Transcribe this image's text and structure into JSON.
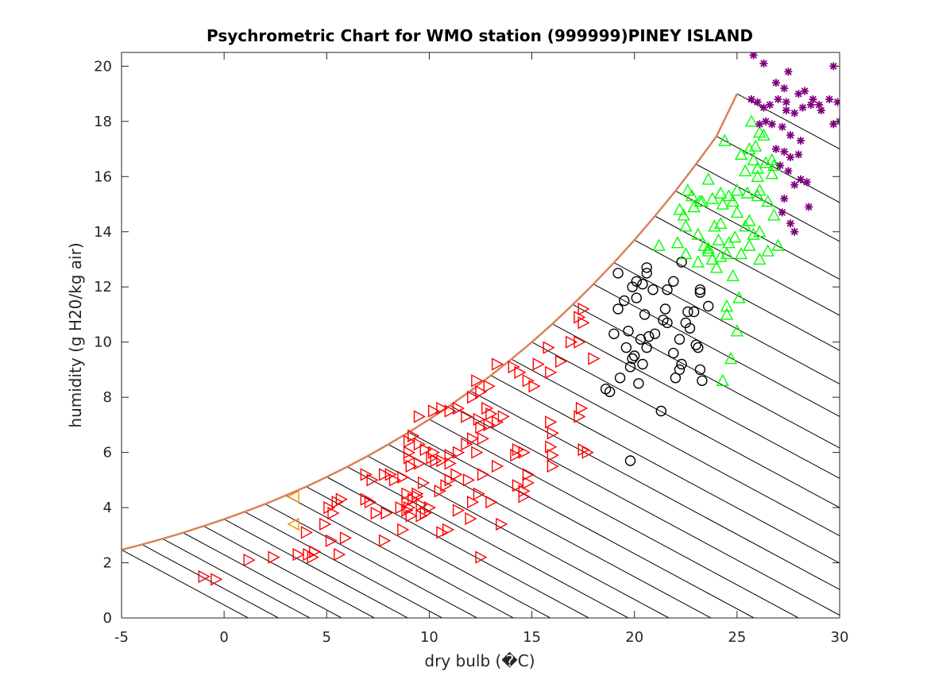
{
  "chart_data": {
    "type": "scatter",
    "title": "Psychrometric Chart for WMO station (999999)PINEY ISLAND",
    "xlabel": "dry bulb (�C)",
    "ylabel": "humidity (g H20/kg air)",
    "xlim": [
      -5,
      30
    ],
    "ylim": [
      0,
      20.5
    ],
    "xticks": [
      -5,
      0,
      5,
      10,
      15,
      20,
      25,
      30
    ],
    "yticks": [
      0,
      2,
      4,
      6,
      8,
      10,
      12,
      14,
      16,
      18,
      20
    ],
    "grid": false,
    "legend": "none",
    "saturation_curve": {
      "color": "#d9825b",
      "x": [
        -5,
        -4,
        -3,
        -2,
        -1,
        0,
        1,
        2,
        3,
        4,
        5,
        6,
        7,
        8,
        9,
        10,
        11,
        12,
        13,
        14,
        15,
        16,
        17,
        18,
        19,
        20,
        21,
        22,
        23,
        24,
        25
      ],
      "y": [
        2.47,
        2.66,
        2.87,
        3.09,
        3.33,
        3.58,
        3.85,
        4.13,
        4.44,
        4.76,
        5.11,
        5.48,
        5.87,
        6.29,
        6.73,
        7.2,
        7.7,
        8.23,
        8.79,
        9.38,
        10.0,
        10.66,
        11.36,
        12.1,
        12.88,
        13.7,
        14.57,
        15.48,
        16.45,
        17.46,
        19.0
      ]
    },
    "wet_bulb_lines": {
      "color": "#000000",
      "twb_start": -5,
      "twb_end": 33,
      "step": 1
    },
    "series": [
      {
        "marker": "triangle-right",
        "color": "#ff0000",
        "points": [
          [
            -1,
            1.5
          ],
          [
            -0.4,
            1.4
          ],
          [
            1.2,
            2.1
          ],
          [
            2.4,
            2.2
          ],
          [
            3.6,
            2.3
          ],
          [
            4.1,
            2.3
          ],
          [
            4.3,
            2.2
          ],
          [
            4.4,
            2.4
          ],
          [
            5.6,
            2.3
          ],
          [
            4.0,
            3.1
          ],
          [
            5.2,
            2.8
          ],
          [
            5.9,
            2.9
          ],
          [
            4.9,
            3.4
          ],
          [
            5.1,
            4.0
          ],
          [
            5.3,
            3.8
          ],
          [
            5.5,
            4.2
          ],
          [
            5.7,
            4.3
          ],
          [
            6.9,
            4.3
          ],
          [
            7.1,
            4.2
          ],
          [
            7.4,
            3.8
          ],
          [
            7.2,
            5.0
          ],
          [
            6.9,
            5.2
          ],
          [
            7.8,
            5.2
          ],
          [
            8.1,
            5.2
          ],
          [
            7.9,
            3.8
          ],
          [
            7.8,
            2.8
          ],
          [
            8.7,
            3.2
          ],
          [
            8.9,
            3.9
          ],
          [
            9.0,
            4.0
          ],
          [
            9.2,
            4.3
          ],
          [
            9.4,
            4.5
          ],
          [
            9.6,
            3.7
          ],
          [
            9.8,
            3.8
          ],
          [
            10.0,
            4.0
          ],
          [
            9.1,
            3.7
          ],
          [
            8.9,
            4.2
          ],
          [
            9.6,
            4.1
          ],
          [
            8.7,
            5.1
          ],
          [
            9.1,
            5.5
          ],
          [
            9.5,
            5.6
          ],
          [
            10.1,
            5.8
          ],
          [
            10.5,
            4.6
          ],
          [
            10.8,
            4.8
          ],
          [
            11.0,
            5.0
          ],
          [
            11.3,
            5.2
          ],
          [
            10.6,
            3.1
          ],
          [
            10.9,
            3.2
          ],
          [
            11.4,
            3.9
          ],
          [
            12.1,
            4.2
          ],
          [
            12.4,
            4.5
          ],
          [
            11.9,
            5.0
          ],
          [
            12.6,
            5.2
          ],
          [
            9.0,
            5.8
          ],
          [
            9.0,
            6.0
          ],
          [
            9.0,
            6.4
          ],
          [
            9.2,
            6.6
          ],
          [
            9.5,
            6.3
          ],
          [
            9.8,
            6.1
          ],
          [
            10.2,
            6.0
          ],
          [
            10.6,
            5.7
          ],
          [
            11.0,
            5.9
          ],
          [
            11.4,
            6.0
          ],
          [
            11.8,
            6.3
          ],
          [
            12.1,
            6.5
          ],
          [
            12.5,
            6.9
          ],
          [
            12.9,
            7.0
          ],
          [
            13.3,
            7.1
          ],
          [
            13.6,
            7.3
          ],
          [
            9.5,
            7.3
          ],
          [
            10.2,
            7.5
          ],
          [
            10.6,
            7.6
          ],
          [
            11.0,
            7.5
          ],
          [
            11.4,
            7.6
          ],
          [
            11.8,
            7.3
          ],
          [
            12.4,
            7.2
          ],
          [
            12.8,
            7.6
          ],
          [
            13.0,
            7.4
          ],
          [
            12.1,
            8.0
          ],
          [
            12.5,
            8.2
          ],
          [
            12.9,
            8.4
          ],
          [
            12.3,
            8.6
          ],
          [
            13.3,
            9.2
          ],
          [
            14.1,
            9.1
          ],
          [
            14.4,
            8.9
          ],
          [
            14.8,
            8.6
          ],
          [
            15.1,
            8.4
          ],
          [
            15.3,
            9.2
          ],
          [
            15.9,
            8.9
          ],
          [
            15.8,
            9.8
          ],
          [
            16.4,
            9.3
          ],
          [
            16.9,
            10.0
          ],
          [
            17.3,
            10.0
          ],
          [
            17.3,
            10.9
          ],
          [
            17.5,
            11.2
          ],
          [
            17.5,
            10.7
          ],
          [
            18.0,
            9.4
          ],
          [
            17.4,
            7.6
          ],
          [
            17.3,
            7.3
          ],
          [
            15.9,
            7.1
          ],
          [
            16.0,
            6.7
          ],
          [
            15.9,
            6.2
          ],
          [
            16.0,
            5.9
          ],
          [
            16.0,
            5.5
          ],
          [
            17.5,
            6.1
          ],
          [
            17.7,
            6.0
          ],
          [
            14.3,
            6.1
          ],
          [
            14.2,
            5.9
          ],
          [
            14.6,
            6.0
          ],
          [
            14.6,
            4.6
          ],
          [
            14.8,
            4.9
          ],
          [
            14.8,
            5.2
          ],
          [
            14.3,
            4.8
          ],
          [
            14.6,
            4.4
          ],
          [
            13.5,
            3.4
          ],
          [
            12.5,
            2.2
          ],
          [
            12.0,
            3.6
          ],
          [
            13.0,
            4.2
          ],
          [
            13.3,
            5.5
          ],
          [
            12.6,
            6.5
          ],
          [
            12.3,
            6.0
          ],
          [
            11.0,
            5.6
          ],
          [
            10.3,
            5.7
          ],
          [
            9.7,
            4.9
          ],
          [
            9.4,
            4.4
          ],
          [
            8.9,
            4.5
          ],
          [
            8.6,
            4.0
          ],
          [
            8.3,
            5.0
          ]
        ]
      },
      {
        "marker": "triangle-left",
        "color": "#ff8c00",
        "points": [
          [
            3.4,
            4.4
          ],
          [
            3.4,
            3.4
          ]
        ]
      },
      {
        "marker": "circle",
        "color": "#000000",
        "points": [
          [
            19.8,
            5.7
          ],
          [
            18.6,
            8.3
          ],
          [
            18.8,
            8.2
          ],
          [
            19.3,
            8.7
          ],
          [
            20.2,
            8.5
          ],
          [
            21.3,
            7.5
          ],
          [
            19.8,
            9.1
          ],
          [
            19.9,
            9.4
          ],
          [
            20.4,
            9.2
          ],
          [
            19.6,
            9.8
          ],
          [
            20.0,
            9.5
          ],
          [
            20.3,
            10.1
          ],
          [
            20.6,
            9.8
          ],
          [
            20.7,
            10.2
          ],
          [
            19.0,
            10.3
          ],
          [
            19.7,
            10.4
          ],
          [
            19.2,
            11.2
          ],
          [
            19.5,
            11.5
          ],
          [
            20.1,
            11.6
          ],
          [
            20.5,
            11.0
          ],
          [
            21.0,
            10.3
          ],
          [
            21.4,
            10.8
          ],
          [
            21.6,
            10.7
          ],
          [
            21.5,
            11.2
          ],
          [
            21.9,
            9.6
          ],
          [
            22.0,
            8.7
          ],
          [
            22.2,
            9.0
          ],
          [
            22.3,
            9.2
          ],
          [
            22.2,
            10.1
          ],
          [
            22.5,
            10.7
          ],
          [
            22.6,
            11.1
          ],
          [
            22.7,
            10.5
          ],
          [
            23.0,
            9.9
          ],
          [
            23.1,
            9.8
          ],
          [
            23.2,
            9.0
          ],
          [
            23.3,
            8.6
          ],
          [
            22.9,
            11.1
          ],
          [
            23.2,
            11.8
          ],
          [
            23.6,
            11.3
          ],
          [
            23.2,
            11.9
          ],
          [
            22.3,
            12.9
          ],
          [
            21.6,
            11.9
          ],
          [
            21.9,
            12.2
          ],
          [
            20.9,
            11.9
          ],
          [
            20.4,
            12.1
          ],
          [
            20.6,
            12.5
          ],
          [
            20.6,
            12.7
          ],
          [
            20.1,
            12.2
          ],
          [
            19.9,
            12.0
          ],
          [
            19.2,
            12.5
          ]
        ]
      },
      {
        "marker": "triangle-up",
        "color": "#00ff00",
        "points": [
          [
            24.3,
            8.6
          ],
          [
            24.7,
            9.4
          ],
          [
            25.0,
            10.4
          ],
          [
            24.5,
            11.3
          ],
          [
            24.5,
            11.0
          ],
          [
            25.1,
            11.6
          ],
          [
            24.8,
            12.4
          ],
          [
            24.0,
            12.7
          ],
          [
            23.1,
            12.9
          ],
          [
            22.5,
            13.2
          ],
          [
            22.1,
            13.6
          ],
          [
            21.2,
            13.5
          ],
          [
            22.5,
            14.2
          ],
          [
            22.4,
            14.6
          ],
          [
            22.2,
            14.8
          ],
          [
            22.8,
            15.3
          ],
          [
            23.3,
            15.1
          ],
          [
            22.9,
            14.9
          ],
          [
            23.1,
            13.9
          ],
          [
            23.4,
            13.5
          ],
          [
            23.6,
            13.4
          ],
          [
            23.8,
            13.0
          ],
          [
            24.2,
            13.1
          ],
          [
            24.5,
            13.2
          ],
          [
            24.6,
            13.6
          ],
          [
            24.9,
            13.8
          ],
          [
            25.2,
            13.2
          ],
          [
            25.6,
            13.5
          ],
          [
            26.1,
            13.0
          ],
          [
            26.5,
            13.3
          ],
          [
            27.0,
            13.5
          ],
          [
            26.8,
            14.6
          ],
          [
            26.1,
            14.0
          ],
          [
            25.8,
            13.9
          ],
          [
            25.6,
            14.4
          ],
          [
            25.4,
            14.2
          ],
          [
            25.0,
            14.7
          ],
          [
            24.8,
            15.1
          ],
          [
            24.2,
            14.3
          ],
          [
            24.3,
            15.0
          ],
          [
            24.6,
            15.3
          ],
          [
            24.2,
            15.4
          ],
          [
            25.0,
            15.5
          ],
          [
            25.5,
            15.4
          ],
          [
            26.0,
            15.3
          ],
          [
            26.1,
            15.5
          ],
          [
            26.5,
            15.1
          ],
          [
            26.7,
            16.1
          ],
          [
            26.7,
            16.6
          ],
          [
            26.4,
            16.5
          ],
          [
            26.0,
            16.3
          ],
          [
            25.8,
            16.6
          ],
          [
            25.4,
            16.2
          ],
          [
            25.2,
            16.8
          ],
          [
            25.6,
            17.0
          ],
          [
            25.9,
            17.1
          ],
          [
            26.3,
            17.5
          ],
          [
            26.1,
            17.6
          ],
          [
            25.7,
            18.0
          ],
          [
            24.4,
            17.3
          ],
          [
            23.6,
            15.9
          ],
          [
            23.2,
            15.1
          ],
          [
            22.6,
            15.5
          ],
          [
            23.8,
            15.2
          ],
          [
            23.9,
            14.2
          ],
          [
            24.1,
            13.7
          ],
          [
            23.6,
            13.3
          ],
          [
            26.0,
            16.0
          ],
          [
            26.8,
            16.4
          ]
        ]
      },
      {
        "marker": "asterisk",
        "color": "#800080",
        "points": [
          [
            25.8,
            20.4
          ],
          [
            26.3,
            20.1
          ],
          [
            27.5,
            19.8
          ],
          [
            28.3,
            19.1
          ],
          [
            29.7,
            20.0
          ],
          [
            26.9,
            19.4
          ],
          [
            27.3,
            19.2
          ],
          [
            28.0,
            19.0
          ],
          [
            28.7,
            18.8
          ],
          [
            29.0,
            18.6
          ],
          [
            29.5,
            18.8
          ],
          [
            29.9,
            18.7
          ],
          [
            30.0,
            18.0
          ],
          [
            29.7,
            17.9
          ],
          [
            25.7,
            18.8
          ],
          [
            26.0,
            18.7
          ],
          [
            26.3,
            18.5
          ],
          [
            26.6,
            18.6
          ],
          [
            27.0,
            18.8
          ],
          [
            27.4,
            18.7
          ],
          [
            27.8,
            18.3
          ],
          [
            28.2,
            18.5
          ],
          [
            28.6,
            18.6
          ],
          [
            26.1,
            17.9
          ],
          [
            26.4,
            18.0
          ],
          [
            26.7,
            17.9
          ],
          [
            27.2,
            17.8
          ],
          [
            27.6,
            17.5
          ],
          [
            28.1,
            17.3
          ],
          [
            26.9,
            17.0
          ],
          [
            27.3,
            16.9
          ],
          [
            27.6,
            16.7
          ],
          [
            28.0,
            16.8
          ],
          [
            27.1,
            16.4
          ],
          [
            27.5,
            16.2
          ],
          [
            28.1,
            15.9
          ],
          [
            28.4,
            15.8
          ],
          [
            27.8,
            15.7
          ],
          [
            27.3,
            15.2
          ],
          [
            28.5,
            14.9
          ],
          [
            27.2,
            14.7
          ],
          [
            27.6,
            14.3
          ],
          [
            27.8,
            14.0
          ],
          [
            29.1,
            18.4
          ],
          [
            27.4,
            18.4
          ]
        ]
      }
    ]
  }
}
